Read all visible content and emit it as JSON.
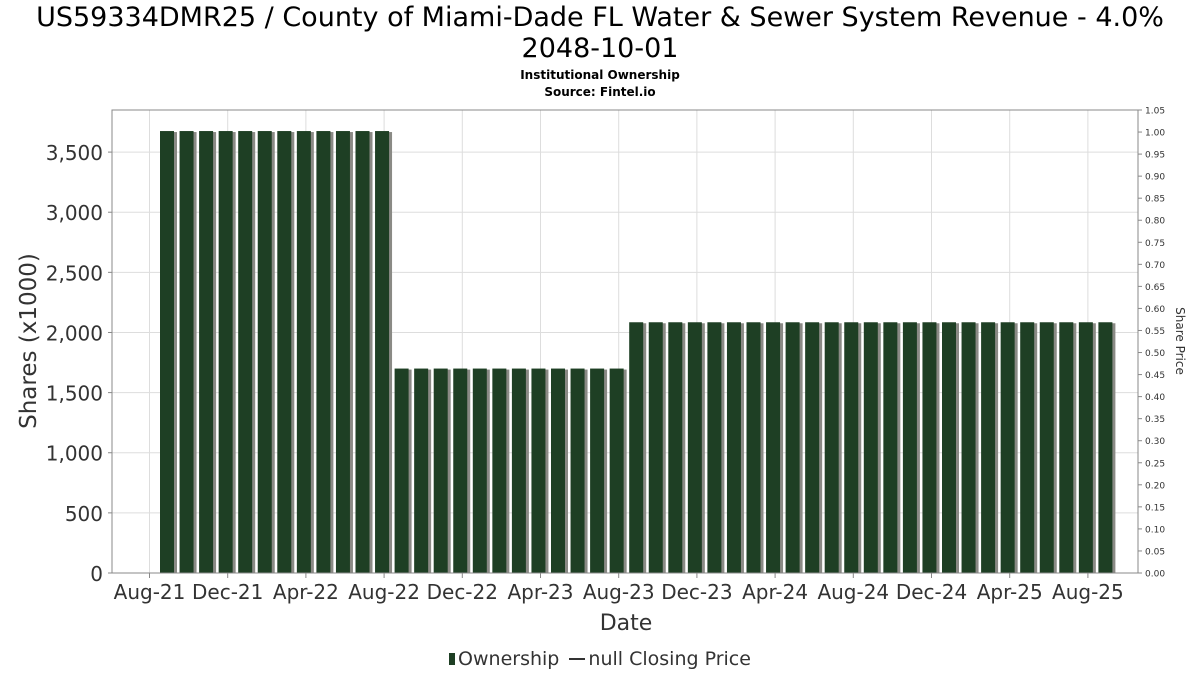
{
  "chart_data": {
    "type": "bar",
    "title_line1": "US59334DMR25 / County of Miami-Dade FL Water & Sewer System Revenue - 4.0%",
    "title_line2": "2048-10-01",
    "subtitle1": "Institutional Ownership",
    "subtitle2": "Source: Fintel.io",
    "xlabel": "Date",
    "ylabel": "Shares (x1000)",
    "y2label": "Share Price",
    "ylim": [
      0,
      3850
    ],
    "y2lim": [
      0,
      1.05
    ],
    "grid": true,
    "x_tick_labels": [
      "Aug-21",
      "Dec-21",
      "Apr-22",
      "Aug-22",
      "Dec-22",
      "Apr-23",
      "Aug-23",
      "Dec-23",
      "Apr-24",
      "Aug-24",
      "Dec-24",
      "Apr-25",
      "Aug-25"
    ],
    "y_tick_labels": [
      "0",
      "500",
      "1,000",
      "1,500",
      "2,000",
      "2,500",
      "3,000",
      "3,500"
    ],
    "y2_tick_labels": [
      "0.00",
      "0.05",
      "0.10",
      "0.15",
      "0.20",
      "0.25",
      "0.30",
      "0.35",
      "0.40",
      "0.45",
      "0.50",
      "0.55",
      "0.60",
      "0.65",
      "0.70",
      "0.75",
      "0.80",
      "0.85",
      "0.90",
      "0.95",
      "1.00",
      "1.05"
    ],
    "series": [
      {
        "name": "Ownership",
        "values": [
          3675,
          3675,
          3675,
          3675,
          3675,
          3675,
          3675,
          3675,
          3675,
          3675,
          3675,
          3675,
          1700,
          1700,
          1700,
          1700,
          1700,
          1700,
          1700,
          1700,
          1700,
          1700,
          1700,
          1700,
          2085,
          2085,
          2085,
          2085,
          2085,
          2085,
          2085,
          2085,
          2085,
          2085,
          2085,
          2085,
          2085,
          2085,
          2085,
          2085,
          2085,
          2085,
          2085,
          2085,
          2085,
          2085,
          2085,
          2085,
          2085
        ]
      }
    ],
    "legend": {
      "placement": "bottom",
      "items": [
        {
          "label": "Ownership",
          "kind": "bar"
        },
        {
          "label": "null Closing Price",
          "kind": "line"
        }
      ]
    },
    "colors": {
      "bar": "#1e3f24",
      "bar_shadow": "#8a8a85",
      "grid": "#dddddd",
      "axis": "#888888"
    }
  }
}
